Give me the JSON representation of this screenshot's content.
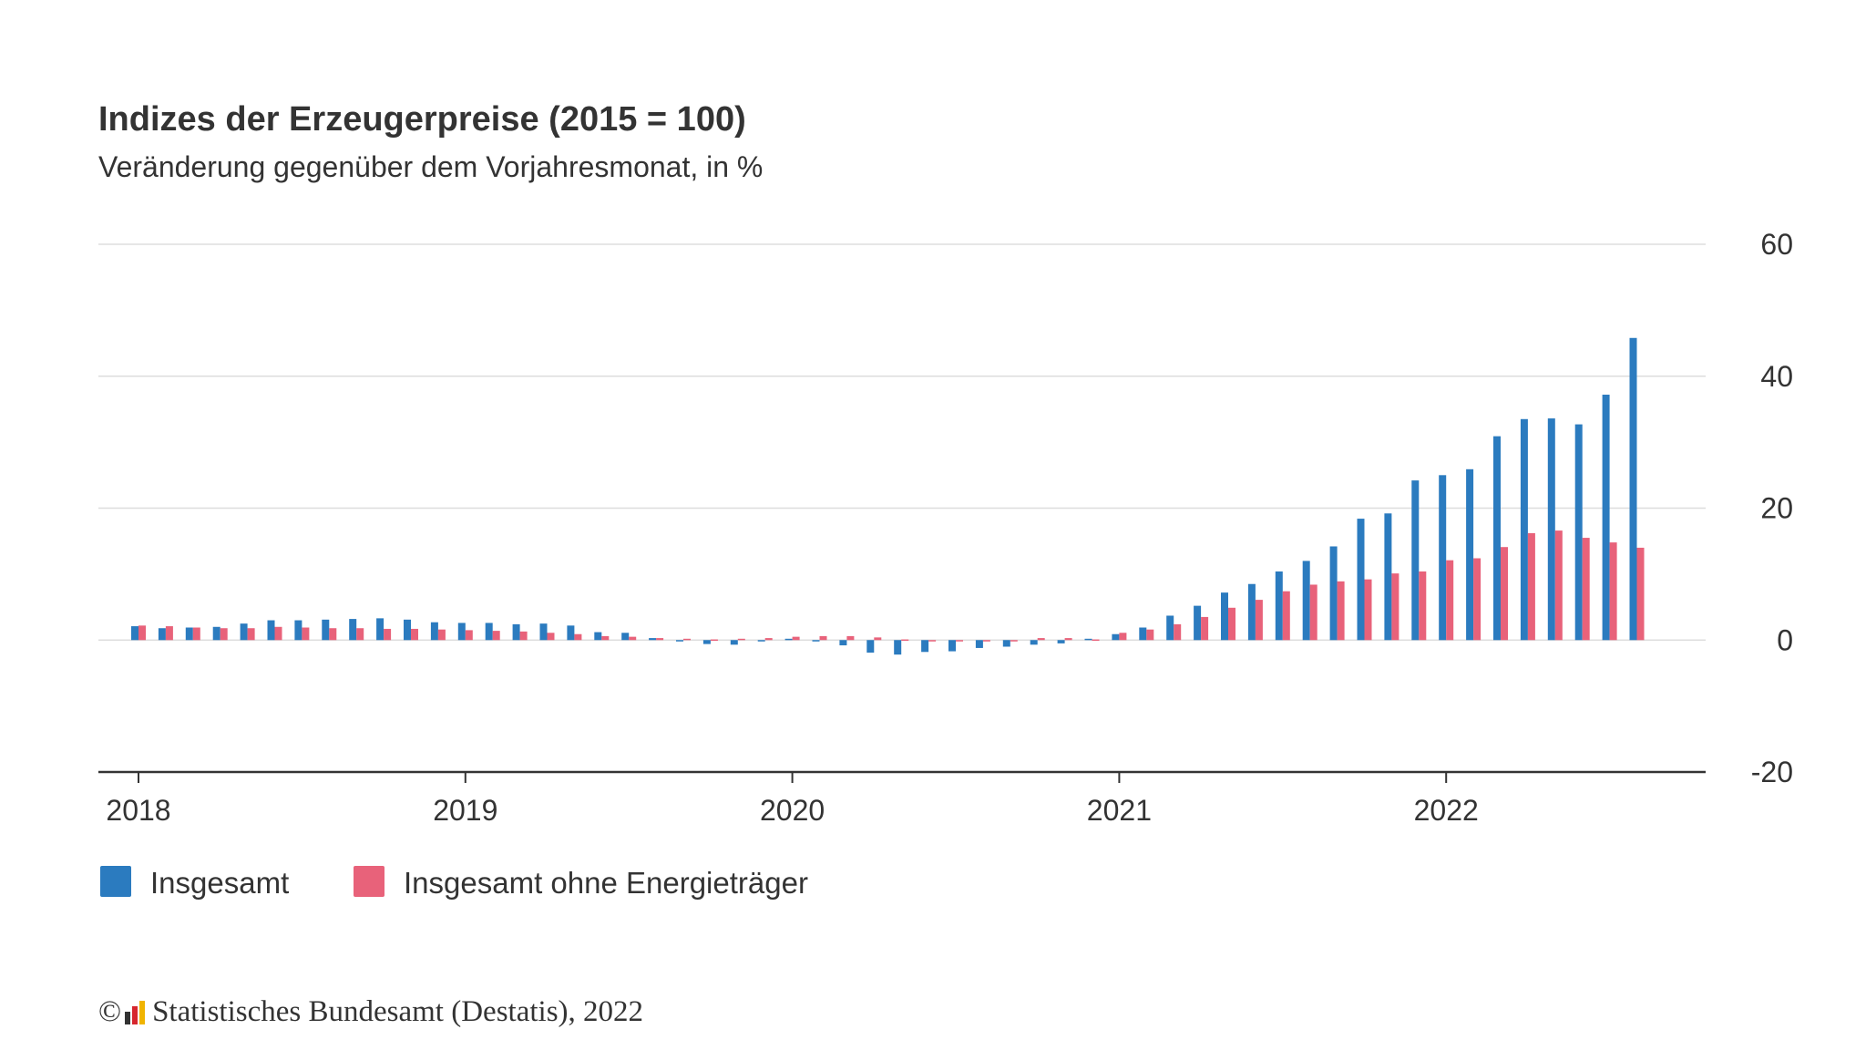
{
  "header": {
    "title": "Indizes der Erzeugerpreise (2015 = 100)",
    "subtitle": "Veränderung gegenüber dem Vorjahresmonat, in %"
  },
  "legend": {
    "items": [
      {
        "label": "Insgesamt",
        "color": "#2b7bbf"
      },
      {
        "label": "Insgesamt ohne Energieträger",
        "color": "#e8627a"
      }
    ]
  },
  "footer": {
    "copyright_symbol": "©",
    "text": "Statistisches Bundesamt (Destatis), 2022",
    "logo_icon": "destatis-logo-icon"
  },
  "chart_data": {
    "type": "bar",
    "title": "Indizes der Erzeugerpreise (2015 = 100)",
    "subtitle": "Veränderung gegenüber dem Vorjahresmonat, in %",
    "xlabel": "",
    "ylabel": "",
    "ylim": [
      -20,
      60
    ],
    "yticks": [
      -20,
      0,
      20,
      40,
      60
    ],
    "y_axis_position": "right",
    "grid": true,
    "legend_position": "bottom-left",
    "x_tick_labels": [
      "2018",
      "2019",
      "2020",
      "2021",
      "2022"
    ],
    "categories": [
      "2018-01",
      "2018-02",
      "2018-03",
      "2018-04",
      "2018-05",
      "2018-06",
      "2018-07",
      "2018-08",
      "2018-09",
      "2018-10",
      "2018-11",
      "2018-12",
      "2019-01",
      "2019-02",
      "2019-03",
      "2019-04",
      "2019-05",
      "2019-06",
      "2019-07",
      "2019-08",
      "2019-09",
      "2019-10",
      "2019-11",
      "2019-12",
      "2020-01",
      "2020-02",
      "2020-03",
      "2020-04",
      "2020-05",
      "2020-06",
      "2020-07",
      "2020-08",
      "2020-09",
      "2020-10",
      "2020-11",
      "2020-12",
      "2021-01",
      "2021-02",
      "2021-03",
      "2021-04",
      "2021-05",
      "2021-06",
      "2021-07",
      "2021-08",
      "2021-09",
      "2021-10",
      "2021-11",
      "2021-12",
      "2022-01",
      "2022-02",
      "2022-03",
      "2022-04",
      "2022-05",
      "2022-06",
      "2022-07",
      "2022-08"
    ],
    "series": [
      {
        "name": "Insgesamt",
        "color": "#2b7bbf",
        "values": [
          2.1,
          1.8,
          1.9,
          2.0,
          2.5,
          3.0,
          3.0,
          3.1,
          3.2,
          3.3,
          3.1,
          2.7,
          2.6,
          2.6,
          2.4,
          2.5,
          2.2,
          1.2,
          1.1,
          0.3,
          -0.1,
          -0.6,
          -0.7,
          -0.2,
          0.2,
          -0.1,
          -0.8,
          -1.9,
          -2.2,
          -1.8,
          -1.7,
          -1.2,
          -1.0,
          -0.7,
          -0.5,
          0.2,
          0.9,
          1.9,
          3.7,
          5.2,
          7.2,
          8.5,
          10.4,
          12.0,
          14.2,
          18.4,
          19.2,
          24.2,
          25.0,
          25.9,
          30.9,
          33.5,
          33.6,
          32.7,
          37.2,
          45.8
        ]
      },
      {
        "name": "Insgesamt ohne Energieträger",
        "color": "#e8627a",
        "values": [
          2.2,
          2.1,
          1.9,
          1.8,
          1.8,
          2.0,
          1.9,
          1.8,
          1.8,
          1.7,
          1.7,
          1.6,
          1.5,
          1.4,
          1.3,
          1.1,
          0.9,
          0.6,
          0.5,
          0.3,
          0.2,
          0.1,
          0.2,
          0.3,
          0.5,
          0.6,
          0.6,
          0.4,
          0.1,
          -0.1,
          -0.2,
          -0.1,
          0.0,
          0.3,
          0.3,
          0.1,
          1.1,
          1.6,
          2.4,
          3.5,
          4.9,
          6.1,
          7.4,
          8.4,
          8.9,
          9.2,
          10.1,
          10.4,
          12.1,
          12.4,
          14.1,
          16.2,
          16.6,
          15.5,
          14.8,
          14.0
        ]
      }
    ]
  }
}
